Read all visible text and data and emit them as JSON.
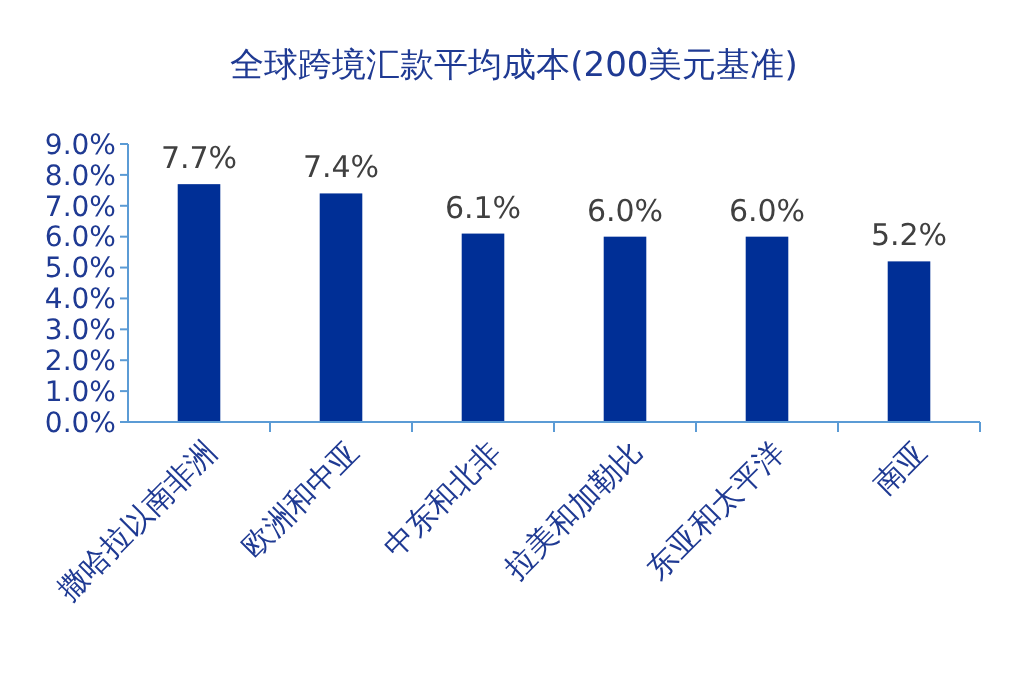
{
  "chart_data": {
    "type": "bar",
    "title": "全球跨境汇款平均成本(200美元基准)",
    "categories": [
      "撒哈拉以南非洲",
      "欧洲和中亚",
      "中东和北非",
      "拉美和加勒比",
      "东亚和太平洋",
      "南亚"
    ],
    "values": [
      7.7,
      7.4,
      6.1,
      6.0,
      6.0,
      5.2
    ],
    "value_labels": [
      "7.7%",
      "7.4%",
      "6.1%",
      "6.0%",
      "6.0%",
      "5.2%"
    ],
    "color": "#002f96",
    "ylim": [
      0,
      9
    ],
    "yticks": [
      {
        "value": 0,
        "label": "0.0%"
      },
      {
        "value": 1,
        "label": "1.0%"
      },
      {
        "value": 2,
        "label": "2.0%"
      },
      {
        "value": 3,
        "label": "3.0%"
      },
      {
        "value": 4,
        "label": "4.0%"
      },
      {
        "value": 5,
        "label": "5.0%"
      },
      {
        "value": 6,
        "label": "6.0%"
      },
      {
        "value": 7,
        "label": "7.0%"
      },
      {
        "value": 8,
        "label": "8.0%"
      },
      {
        "value": 9,
        "label": "9.0%"
      }
    ],
    "grid": false
  }
}
